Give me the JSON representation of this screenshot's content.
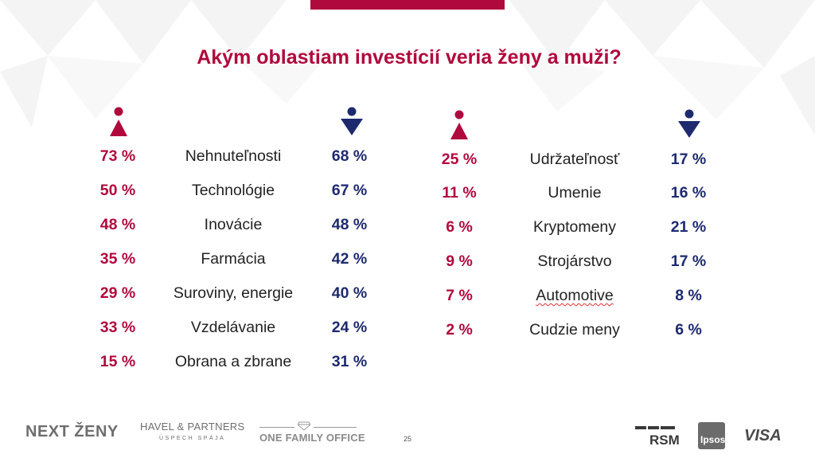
{
  "slide": {
    "title": "Akým oblastiam investícií veria ženy a muži?",
    "page_number": "25",
    "colors": {
      "accent_women": "#b0093d",
      "accent_men": "#1e2a6e"
    }
  },
  "left_table": {
    "rows": [
      {
        "women": "73 %",
        "category": "Nehnuteľnosti",
        "men": "68 %"
      },
      {
        "women": "50 %",
        "category": "Technológie",
        "men": "67 %"
      },
      {
        "women": "48 %",
        "category": "Inovácie",
        "men": "48 %"
      },
      {
        "women": "35 %",
        "category": "Farmácia",
        "men": "42 %"
      },
      {
        "women": "29 %",
        "category": "Suroviny, energie",
        "men": "40 %"
      },
      {
        "women": "33 %",
        "category": "Vzdelávanie",
        "men": "24 %"
      },
      {
        "women": "15 %",
        "category": "Obrana a zbrane",
        "men": "31 %"
      }
    ]
  },
  "right_table": {
    "rows": [
      {
        "women": "25 %",
        "category": "Udržateľnosť",
        "men": "17 %"
      },
      {
        "women": "11 %",
        "category": "Umenie",
        "men": "16 %"
      },
      {
        "women": "6 %",
        "category": "Kryptomeny",
        "men": "21 %"
      },
      {
        "women": "9 %",
        "category": "Strojárstvo",
        "men": "17 %"
      },
      {
        "women": "7 %",
        "category": "Automotive",
        "men": "8 %"
      },
      {
        "women": "2 %",
        "category": "Cudzie meny",
        "men": "6 %"
      }
    ]
  },
  "icons": {
    "women": "female-figure-icon",
    "men": "male-figure-icon"
  },
  "footer": {
    "next_zeny": "NEXT ŽENY",
    "havel_name": "HAVEL & PARTNERS",
    "havel_tagline": "ÚSPECH SPÁJA",
    "one_family_office": "ONE FAMILY OFFICE",
    "rsm": "RSM",
    "ipsos": "Ipsos",
    "visa": "VISA"
  }
}
